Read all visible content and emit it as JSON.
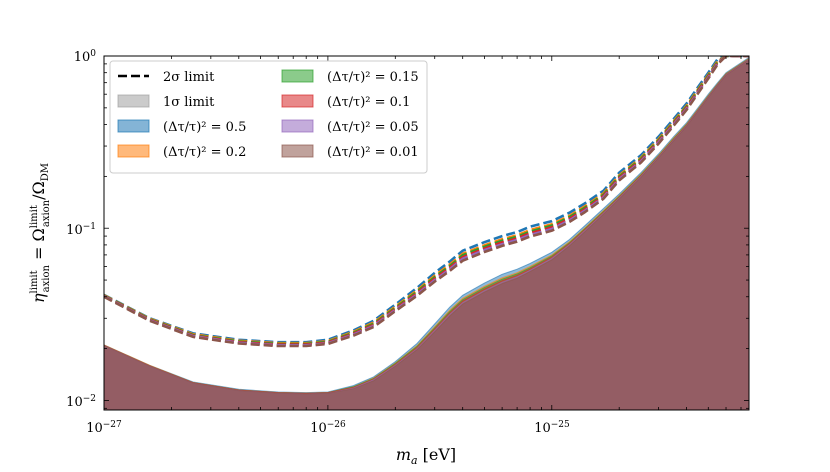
{
  "chart_data": {
    "type": "area",
    "xlabel": "m_a [eV]",
    "ylabel": "η_axion^limit = Ω_axion^limit / Ω_DM",
    "x_scale": "log",
    "y_scale": "log",
    "xlim": [
      1e-27,
      7.6e-25
    ],
    "ylim": [
      0.0088,
      1.0
    ],
    "x_tick_labels": [
      "10−27",
      "10−26",
      "10−25"
    ],
    "y_tick_labels": [
      "10−2",
      "10−1",
      "100"
    ],
    "x": [
      1e-27,
      1.6e-27,
      2.5e-27,
      4e-27,
      6e-27,
      8e-27,
      1e-26,
      1.3e-26,
      1.6e-26,
      2e-26,
      2.5e-26,
      3e-26,
      3.5e-26,
      4e-26,
      5e-26,
      6e-26,
      7e-26,
      8e-26,
      1e-25,
      1.2e-25,
      1.4e-25,
      1.7e-25,
      2e-25,
      2.5e-25,
      3e-25,
      3.5e-25,
      4e-25,
      4.5e-25,
      5e-25,
      5.5e-25,
      6e-25,
      7.6e-25
    ],
    "series": [
      {
        "name": "(Δτ/τ)² = 0.5",
        "color": "#1f77b4",
        "band": [
          0.021,
          0.016,
          0.0128,
          0.0116,
          0.0112,
          0.0111,
          0.0112,
          0.0122,
          0.0137,
          0.0168,
          0.0214,
          0.0278,
          0.0348,
          0.0408,
          0.048,
          0.054,
          0.0578,
          0.0625,
          0.0725,
          0.086,
          0.103,
          0.13,
          0.158,
          0.21,
          0.27,
          0.34,
          0.41,
          0.5,
          0.6,
          0.7,
          0.8,
          0.98
        ],
        "limit_2sigma": [
          0.041,
          0.03,
          0.0245,
          0.0225,
          0.0218,
          0.0218,
          0.0225,
          0.0255,
          0.029,
          0.036,
          0.045,
          0.055,
          0.064,
          0.074,
          0.083,
          0.09,
          0.095,
          0.102,
          0.11,
          0.123,
          0.139,
          0.165,
          0.21,
          0.265,
          0.34,
          0.43,
          0.53,
          0.66,
          0.8,
          0.96,
          1.0,
          1.0
        ]
      },
      {
        "name": "(Δτ/τ)² = 0.2",
        "color": "#ff7f0e",
        "band": [
          0.021,
          0.016,
          0.0127,
          0.0115,
          0.0111,
          0.011,
          0.0111,
          0.012,
          0.0135,
          0.0165,
          0.0208,
          0.0268,
          0.0334,
          0.0392,
          0.046,
          0.0515,
          0.0552,
          0.06,
          0.07,
          0.0835,
          0.1,
          0.1265,
          0.1545,
          0.206,
          0.265,
          0.334,
          0.403,
          0.492,
          0.59,
          0.69,
          0.79,
          0.97
        ],
        "limit_2sigma": [
          0.0408,
          0.0298,
          0.0242,
          0.0222,
          0.0215,
          0.0215,
          0.0221,
          0.025,
          0.0283,
          0.035,
          0.0435,
          0.053,
          0.0615,
          0.071,
          0.0795,
          0.0862,
          0.091,
          0.0975,
          0.1055,
          0.118,
          0.1335,
          0.159,
          0.2025,
          0.256,
          0.329,
          0.417,
          0.514,
          0.64,
          0.778,
          0.935,
          1.0,
          1.0
        ]
      },
      {
        "name": "(Δτ/τ)² = 0.15",
        "color": "#2ca02c",
        "band": [
          0.0209,
          0.0159,
          0.0127,
          0.0115,
          0.0111,
          0.011,
          0.0111,
          0.012,
          0.0134,
          0.0164,
          0.0206,
          0.0264,
          0.0328,
          0.0385,
          0.0452,
          0.0506,
          0.0543,
          0.059,
          0.069,
          0.0825,
          0.099,
          0.125,
          0.153,
          0.204,
          0.263,
          0.331,
          0.4,
          0.488,
          0.586,
          0.686,
          0.786,
          0.965
        ],
        "limit_2sigma": [
          0.0406,
          0.0296,
          0.024,
          0.022,
          0.0213,
          0.0213,
          0.0219,
          0.0247,
          0.0279,
          0.0345,
          0.0428,
          0.052,
          0.0603,
          0.0696,
          0.078,
          0.0845,
          0.0893,
          0.0955,
          0.1035,
          0.116,
          0.131,
          0.1565,
          0.1995,
          0.2525,
          0.3245,
          0.4115,
          0.5075,
          0.632,
          0.769,
          0.925,
          1.0,
          1.0
        ]
      },
      {
        "name": "(Δτ/τ)² = 0.1",
        "color": "#d62728",
        "band": [
          0.0209,
          0.0159,
          0.0127,
          0.0115,
          0.0111,
          0.011,
          0.0111,
          0.0119,
          0.0133,
          0.0162,
          0.0203,
          0.026,
          0.0322,
          0.0378,
          0.0443,
          0.0496,
          0.0533,
          0.058,
          0.068,
          0.0815,
          0.0978,
          0.1235,
          0.1515,
          0.202,
          0.261,
          0.328,
          0.397,
          0.485,
          0.582,
          0.682,
          0.782,
          0.96
        ],
        "limit_2sigma": [
          0.0404,
          0.0294,
          0.0238,
          0.0218,
          0.0211,
          0.0211,
          0.0217,
          0.0244,
          0.0275,
          0.034,
          0.042,
          0.051,
          0.059,
          0.068,
          0.0763,
          0.0827,
          0.0874,
          0.0935,
          0.1013,
          0.1136,
          0.1285,
          0.1538,
          0.1962,
          0.2485,
          0.3197,
          0.4055,
          0.5005,
          0.6235,
          0.7595,
          0.9145,
          1.0,
          1.0
        ]
      },
      {
        "name": "(Δτ/τ)² = 0.05",
        "color": "#9467bd",
        "band": [
          0.0208,
          0.0158,
          0.0126,
          0.0114,
          0.011,
          0.0109,
          0.011,
          0.0118,
          0.0132,
          0.016,
          0.02,
          0.0255,
          0.0316,
          0.037,
          0.0434,
          0.0486,
          0.0522,
          0.057,
          0.0668,
          0.0803,
          0.0965,
          0.122,
          0.1498,
          0.1998,
          0.2588,
          0.325,
          0.3938,
          0.4815,
          0.578,
          0.678,
          0.778,
          0.955
        ],
        "limit_2sigma": [
          0.0402,
          0.0292,
          0.0236,
          0.0216,
          0.0209,
          0.0209,
          0.0215,
          0.0241,
          0.0271,
          0.0335,
          0.0412,
          0.05,
          0.0577,
          0.0664,
          0.0746,
          0.0808,
          0.0855,
          0.0915,
          0.099,
          0.1112,
          0.126,
          0.151,
          0.1928,
          0.2445,
          0.3148,
          0.3995,
          0.4935,
          0.615,
          0.75,
          0.904,
          1.0,
          1.0
        ]
      },
      {
        "name": "(Δτ/τ)² = 0.01",
        "color": "#8c564b",
        "band": [
          0.0208,
          0.0158,
          0.0126,
          0.0114,
          0.011,
          0.0109,
          0.011,
          0.0117,
          0.013,
          0.0158,
          0.0197,
          0.025,
          0.0309,
          0.0362,
          0.0425,
          0.0476,
          0.0512,
          0.056,
          0.0655,
          0.079,
          0.095,
          0.1205,
          0.148,
          0.1975,
          0.2565,
          0.322,
          0.3905,
          0.478,
          0.574,
          0.674,
          0.774,
          0.95
        ],
        "limit_2sigma": [
          0.04,
          0.029,
          0.0234,
          0.0214,
          0.0207,
          0.0207,
          0.0213,
          0.0238,
          0.0267,
          0.033,
          0.0405,
          0.049,
          0.0565,
          0.0648,
          0.0728,
          0.079,
          0.0836,
          0.0895,
          0.0968,
          0.1088,
          0.1235,
          0.1482,
          0.1895,
          0.2405,
          0.31,
          0.3935,
          0.4865,
          0.6065,
          0.7405,
          0.8935,
          1.0,
          1.0
        ]
      }
    ],
    "legend": {
      "placement": "upper-left",
      "entries": [
        {
          "label": "2σ limit",
          "style": "dashed-line",
          "color": "#000000"
        },
        {
          "label": "1σ limit",
          "style": "patch",
          "color": "#a0a0a0"
        },
        {
          "label": "(Δτ/τ)² = 0.5",
          "style": "patch",
          "color": "#1f77b4"
        },
        {
          "label": "(Δτ/τ)² = 0.2",
          "style": "patch",
          "color": "#ff7f0e"
        },
        {
          "label": "(Δτ/τ)² = 0.15",
          "style": "patch",
          "color": "#2ca02c"
        },
        {
          "label": "(Δτ/τ)² = 0.1",
          "style": "patch",
          "color": "#d62728"
        },
        {
          "label": "(Δτ/τ)² = 0.05",
          "style": "patch",
          "color": "#9467bd"
        },
        {
          "label": "(Δτ/τ)² = 0.01",
          "style": "patch",
          "color": "#8c564b"
        }
      ]
    },
    "grid": false
  }
}
